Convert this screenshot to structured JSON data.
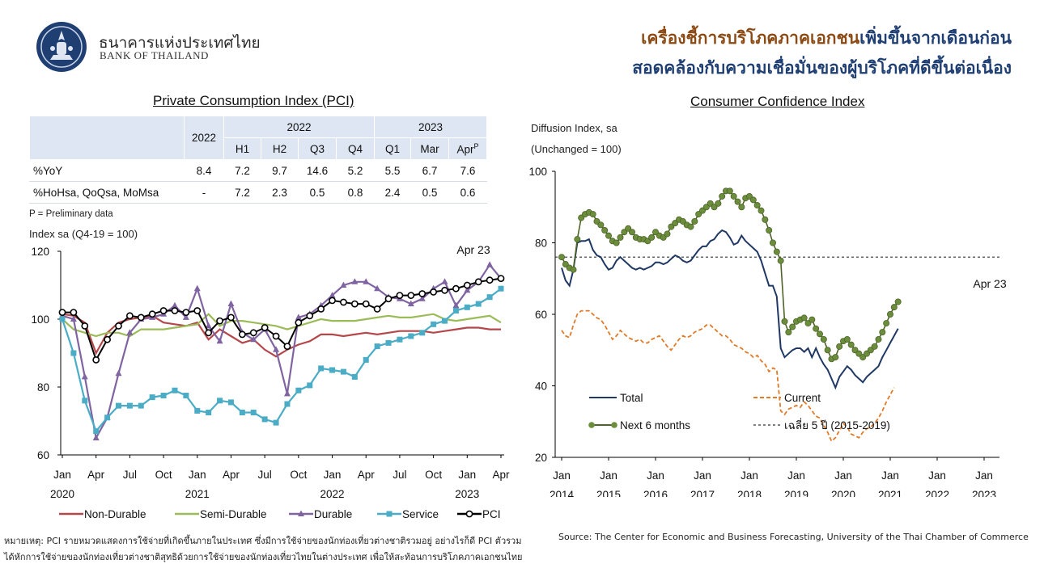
{
  "header": {
    "bank_name_th": "ธนาคารแห่งประเทศไทย",
    "bank_name_en": "BANK OF THAILAND",
    "headline_line1_part1": "เครื่องชี้การบริโภคภาคเอกชน",
    "headline_line1_part2": "เพิ่มขึ้นจากเดือนก่อน",
    "headline_line2": "สอดคล้องกับความเชื่อมั่นของผู้บริโภคที่ดีขึ้นต่อเนื่อง"
  },
  "pci_table": {
    "title": "Private Consumption Index (PCI)",
    "header_year_single": "2022",
    "group_2022": "2022",
    "group_2023": "2023",
    "sub_headers": [
      "H1",
      "H2",
      "Q3",
      "Q4",
      "Q1",
      "Mar",
      "Apr"
    ],
    "apr_superscript": "P",
    "rows": [
      {
        "label": "%YoY",
        "values": [
          "8.4",
          "7.2",
          "9.7",
          "14.6",
          "5.2",
          "5.5",
          "6.7",
          "7.6"
        ]
      },
      {
        "label": "%HoHsa, QoQsa, MoMsa",
        "values": [
          "-",
          "7.2",
          "2.3",
          "0.5",
          "0.8",
          "2.4",
          "0.5",
          "0.6"
        ]
      }
    ],
    "footnote": "P = Preliminary data"
  },
  "colors": {
    "non_durable": "#b5474b",
    "semi_durable": "#9bbb59",
    "durable": "#8064a2",
    "service": "#4bacc6",
    "pci": "#000000",
    "total": "#1f3864",
    "current": "#e07b2a",
    "next6": "#4f6228",
    "next6_marker": "#6b8e3d",
    "avg": "#333333"
  },
  "chart_data": [
    {
      "type": "line",
      "ylabel": "Index sa (Q4-19 = 100)",
      "ylim": [
        60,
        120
      ],
      "yticks": [
        60,
        80,
        100,
        120
      ],
      "annotation": "Apr 23",
      "x": [
        "Jan-20",
        "Feb-20",
        "Mar-20",
        "Apr-20",
        "May-20",
        "Jun-20",
        "Jul-20",
        "Aug-20",
        "Sep-20",
        "Oct-20",
        "Nov-20",
        "Dec-20",
        "Jan-21",
        "Feb-21",
        "Mar-21",
        "Apr-21",
        "May-21",
        "Jun-21",
        "Jul-21",
        "Aug-21",
        "Sep-21",
        "Oct-21",
        "Nov-21",
        "Dec-21",
        "Jan-22",
        "Feb-22",
        "Mar-22",
        "Apr-22",
        "May-22",
        "Jun-22",
        "Jul-22",
        "Aug-22",
        "Sep-22",
        "Oct-22",
        "Nov-22",
        "Dec-22",
        "Jan-23",
        "Feb-23",
        "Mar-23",
        "Apr-23"
      ],
      "x_tick_labels": [
        "Jan",
        "Apr",
        "Jul",
        "Oct",
        "Jan",
        "Apr",
        "Jul",
        "Oct",
        "Jan",
        "Apr",
        "Jul",
        "Oct",
        "Jan",
        "Apr"
      ],
      "x_tick_index": [
        0,
        3,
        6,
        9,
        12,
        15,
        18,
        21,
        24,
        27,
        30,
        33,
        36,
        39
      ],
      "x_year_labels": [
        {
          "label": "2020",
          "index": 0
        },
        {
          "label": "2021",
          "index": 12
        },
        {
          "label": "2022",
          "index": 24
        },
        {
          "label": "2023",
          "index": 36
        }
      ],
      "series": [
        {
          "name": "Non-Durable",
          "key": "non_durable",
          "marker": "none",
          "values": [
            101.5,
            101,
            99,
            90,
            96,
            99,
            100,
            100.5,
            101,
            99,
            98.5,
            98,
            99,
            94,
            97,
            95,
            93,
            94,
            91,
            89,
            91,
            92.5,
            93.5,
            95.5,
            95.5,
            95,
            95.5,
            96,
            95.5,
            96,
            96.5,
            96.5,
            96.5,
            96,
            96.5,
            97,
            97.5,
            97.5,
            97,
            97
          ]
        },
        {
          "name": "Semi-Durable",
          "key": "semi_durable",
          "marker": "none",
          "values": [
            100,
            97,
            96,
            95,
            96,
            96,
            95,
            97,
            97,
            97,
            97.5,
            98,
            98.5,
            101.5,
            98,
            99.5,
            99.5,
            99,
            98.5,
            98,
            97,
            98,
            99,
            100,
            99.5,
            99.5,
            99.5,
            100,
            100.5,
            101,
            100.5,
            100.5,
            101,
            101.5,
            100,
            99.5,
            100,
            100.5,
            101,
            99
          ]
        },
        {
          "name": "Durable",
          "key": "durable",
          "marker": "triangle",
          "values": [
            101,
            100,
            83,
            65,
            71,
            84,
            96,
            100,
            100.5,
            101.5,
            104,
            100.5,
            109,
            98,
            93.5,
            104.5,
            96,
            94,
            97,
            91,
            78,
            100.5,
            101.5,
            104,
            107,
            110,
            111,
            111,
            109,
            106.5,
            106,
            104.5,
            106,
            109,
            111,
            104,
            108.5,
            111,
            116,
            112
          ]
        },
        {
          "name": "Service",
          "key": "service",
          "marker": "square",
          "values": [
            100,
            90,
            76,
            67,
            71,
            74.5,
            74.5,
            74.5,
            77,
            77.5,
            79,
            77.5,
            73,
            72.5,
            76,
            75.5,
            72.5,
            72.5,
            70.5,
            69.5,
            75,
            79,
            80.5,
            85.5,
            85,
            84.5,
            83,
            88,
            92,
            93,
            94,
            95,
            96,
            98.5,
            99.5,
            102.5,
            103.5,
            104.5,
            106.5,
            109
          ]
        },
        {
          "name": "PCI",
          "key": "pci",
          "marker": "circle",
          "values": [
            102,
            102,
            98,
            88,
            94,
            98,
            101,
            100.5,
            101.5,
            102.5,
            102.5,
            102,
            102.5,
            96,
            99.5,
            100.5,
            95.5,
            96,
            97.5,
            95,
            92,
            99,
            101,
            103,
            105.5,
            105,
            104.5,
            104.5,
            103,
            106,
            107,
            107,
            107.5,
            108,
            108.5,
            109,
            110,
            111,
            111.5,
            112
          ]
        }
      ]
    },
    {
      "type": "line",
      "title": "Consumer Confidence Index",
      "ylabel_line1": "Diffusion Index, sa",
      "ylabel_line2": "(Unchanged = 100)",
      "ylim": [
        20,
        100
      ],
      "yticks": [
        20,
        40,
        60,
        80,
        100
      ],
      "annotation": "Apr 23",
      "x_tick_labels": [
        "Jan",
        "Jan",
        "Jan",
        "Jan",
        "Jan",
        "Jan",
        "Jan",
        "Jan",
        "Jan",
        "Jan"
      ],
      "x_year_labels": [
        "2014",
        "2015",
        "2016",
        "2017",
        "2018",
        "2019",
        "2020",
        "2021",
        "2022",
        "2023"
      ],
      "x_start": "Jan-2014",
      "x_end": "Apr-2023",
      "series": [
        {
          "name": "Total",
          "key": "total",
          "style": "solid",
          "values": [
            73,
            69.5,
            68,
            72.5,
            80,
            80.5,
            80.5,
            81,
            78,
            76.5,
            76,
            74,
            72.5,
            73,
            75,
            76,
            75,
            74,
            73,
            72.5,
            73,
            72.5,
            73,
            73.5,
            74.5,
            74.5,
            74,
            74.5,
            75.5,
            76.5,
            76,
            75,
            74.5,
            75,
            76.5,
            78,
            79,
            79,
            80.5,
            81,
            82.5,
            83.5,
            83,
            81.5,
            79.5,
            80,
            82,
            80.5,
            79.5,
            78.5,
            77.5,
            75,
            71.5,
            68,
            68,
            65,
            50.5,
            48,
            49,
            50,
            50.5,
            50.5,
            49.5,
            50.5,
            48,
            50.5,
            48,
            46,
            44.5,
            42,
            39.5,
            42.5,
            44,
            45.5,
            44.5,
            43,
            42,
            41,
            42.5,
            43.5,
            44.5,
            45.5,
            48,
            50,
            52,
            54,
            56
          ]
        },
        {
          "name": "Current",
          "key": "current",
          "style": "dashed",
          "values": [
            55.5,
            54,
            53.5,
            57,
            60,
            61,
            61,
            61,
            60,
            59,
            58.5,
            57,
            55,
            53,
            54,
            55.5,
            54.5,
            53.5,
            53,
            52.5,
            53,
            52,
            52,
            53,
            53.5,
            54,
            52.5,
            51,
            50,
            51.5,
            53,
            54,
            53.5,
            54,
            55,
            55.5,
            56,
            57,
            57,
            56,
            55,
            54,
            54,
            53,
            51.5,
            51,
            50.5,
            49.5,
            49,
            48,
            48.5,
            47,
            46,
            44,
            45,
            44.5,
            33,
            32,
            33.5,
            34,
            34.5,
            34,
            35.5,
            34.5,
            33,
            31.5,
            31,
            29,
            27,
            24.5,
            25.5,
            27.5,
            29.5,
            28.5,
            26.5,
            26,
            25.5,
            27,
            28,
            28.5,
            29.5,
            31,
            33,
            35.5,
            37.5,
            39.5
          ]
        },
        {
          "name": "Next 6 months",
          "key": "next6",
          "style": "marker-line",
          "values": [
            76,
            74,
            73,
            72.5,
            81,
            87,
            88,
            88.5,
            88,
            86,
            85,
            83.5,
            82,
            80.5,
            80,
            81.5,
            83,
            84,
            83,
            81.5,
            81,
            81,
            80.5,
            81.5,
            83,
            82,
            81.5,
            82.5,
            84.5,
            85.5,
            86.5,
            86,
            85,
            84.5,
            86,
            88,
            89,
            90,
            91,
            90,
            91,
            93,
            94.5,
            94.5,
            93,
            91.5,
            90,
            92.5,
            93,
            92,
            90.5,
            89,
            86.5,
            83.5,
            80,
            77.5,
            75,
            58,
            55,
            56.5,
            58,
            58.5,
            59,
            57.5,
            58.5,
            56,
            54.5,
            53,
            50,
            47.5,
            48,
            51,
            52.5,
            53,
            51.5,
            50,
            49,
            48,
            49,
            50,
            51,
            53,
            55,
            57.5,
            60,
            62,
            63.5
          ]
        },
        {
          "name": "เฉลี่ย 5 ปี (2015-2019)",
          "key": "avg",
          "style": "dotted",
          "value": 76
        }
      ]
    }
  ],
  "footer": {
    "note_line1": "หมายเหตุ: PCI รายหมวดแสดงการใช้จ่ายที่เกิดขึ้นภายในประเทศ ซึ่งมีการใช้จ่ายของนักท่องเที่ยวต่างชาติรวมอยู่ อย่างไรก็ดี PCI ตัวรวม",
    "note_line2": "ได้หักการใช้จ่ายของนักท่องเที่ยวต่างชาติสุทธิด้วยการใช้จ่ายของนักท่องเที่ยวไทยในต่างประเทศ เพื่อให้สะท้อนการบริโภคภาคเอกชนไทย",
    "source": "Source: The Center for Economic and Business Forecasting, University of the Thai Chamber of Commerce"
  }
}
